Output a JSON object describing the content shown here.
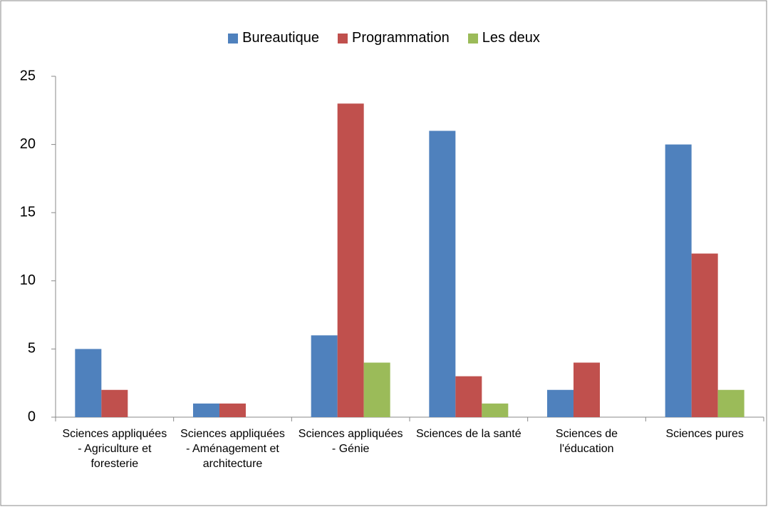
{
  "chart_data": {
    "type": "bar",
    "categories": [
      "Sciences appliquées - Agriculture et foresterie",
      "Sciences appliquées - Aménagement et architecture",
      "Sciences appliquées - Génie",
      "Sciences de la santé",
      "Sciences de l'éducation",
      "Sciences pures"
    ],
    "series": [
      {
        "name": "Bureautique",
        "color": "#4f81bd",
        "values": [
          5,
          1,
          6,
          21,
          2,
          20
        ]
      },
      {
        "name": "Programmation",
        "color": "#c0504d",
        "values": [
          2,
          1,
          23,
          3,
          4,
          12
        ]
      },
      {
        "name": "Les deux",
        "color": "#9bbb59",
        "values": [
          0,
          0,
          4,
          1,
          0,
          2
        ]
      }
    ],
    "ylim": [
      0,
      25
    ],
    "yticks": [
      0,
      5,
      10,
      15,
      20,
      25
    ],
    "legend": "top"
  }
}
